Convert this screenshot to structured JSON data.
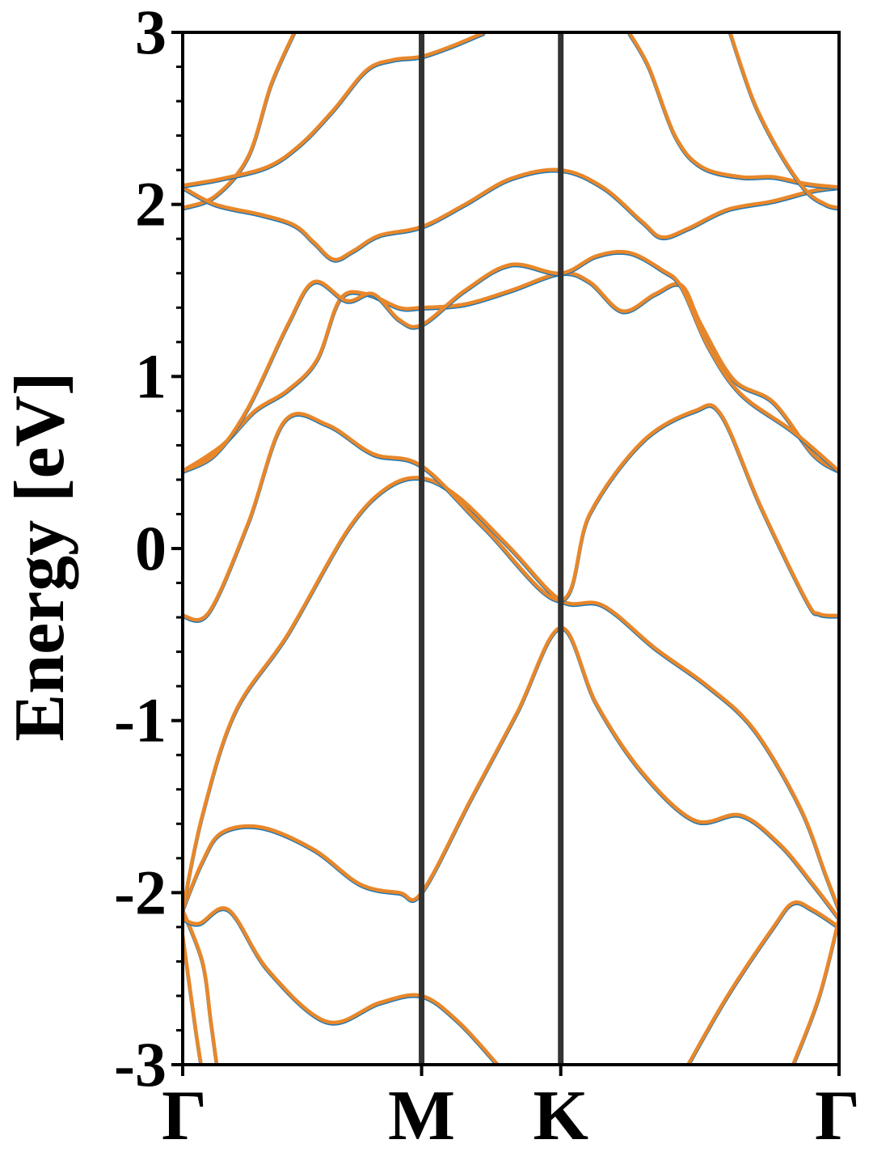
{
  "chart_data": {
    "type": "line",
    "title": "",
    "ylabel": "Energy [eV]",
    "xlabel": "",
    "ylim": [
      -3,
      3
    ],
    "yticks": [
      "3",
      "2",
      "1",
      "0",
      "-1",
      "-2",
      "-3"
    ],
    "kpath": [
      {
        "label": "Γ",
        "x": 0.0
      },
      {
        "label": "M",
        "x": 0.364
      },
      {
        "label": "K",
        "x": 0.576
      },
      {
        "label": "Γ",
        "x": 1.0
      }
    ],
    "grid": false,
    "legend": "none",
    "series_colors": {
      "primary": "#1f77b4",
      "secondary": "#e8872a"
    },
    "vline_color": "#333333",
    "bands": [
      {
        "name": "",
        "points": [
          [
            0.0,
            -2.25
          ],
          [
            0.02,
            -2.8
          ],
          [
            0.028,
            -3.0
          ]
        ]
      },
      {
        "name": "",
        "points": [
          [
            0.0,
            -2.1
          ],
          [
            0.03,
            -2.4
          ],
          [
            0.043,
            -2.75
          ],
          [
            0.052,
            -3.0
          ]
        ]
      },
      {
        "name": "",
        "points": [
          [
            0.0,
            -2.15
          ],
          [
            0.025,
            -2.18
          ],
          [
            0.07,
            -2.1
          ],
          [
            0.13,
            -2.45
          ],
          [
            0.22,
            -2.75
          ],
          [
            0.3,
            -2.64
          ],
          [
            0.364,
            -2.6
          ],
          [
            0.42,
            -2.75
          ],
          [
            0.48,
            -3.0
          ]
        ]
      },
      {
        "name": "",
        "points": [
          [
            0.0,
            -2.1
          ],
          [
            0.03,
            -1.82
          ],
          [
            0.06,
            -1.65
          ],
          [
            0.12,
            -1.62
          ],
          [
            0.2,
            -1.75
          ],
          [
            0.27,
            -1.95
          ],
          [
            0.33,
            -2.0
          ],
          [
            0.364,
            -2.0
          ],
          [
            0.44,
            -1.45
          ],
          [
            0.51,
            -0.95
          ],
          [
            0.576,
            -0.46
          ],
          [
            0.63,
            -0.9
          ],
          [
            0.7,
            -1.3
          ],
          [
            0.78,
            -1.58
          ],
          [
            0.85,
            -1.55
          ],
          [
            0.91,
            -1.72
          ],
          [
            0.96,
            -1.95
          ],
          [
            1.0,
            -2.15
          ]
        ]
      },
      {
        "name": "",
        "points": [
          [
            0.0,
            -2.1
          ],
          [
            0.03,
            -1.55
          ],
          [
            0.08,
            -0.95
          ],
          [
            0.16,
            -0.5
          ],
          [
            0.25,
            0.1
          ],
          [
            0.31,
            0.35
          ],
          [
            0.364,
            0.41
          ],
          [
            0.42,
            0.3
          ],
          [
            0.5,
            0.0
          ],
          [
            0.576,
            -0.3
          ],
          [
            0.64,
            -0.33
          ],
          [
            0.72,
            -0.58
          ],
          [
            0.8,
            -0.8
          ],
          [
            0.87,
            -1.05
          ],
          [
            0.94,
            -1.5
          ],
          [
            0.98,
            -1.9
          ],
          [
            1.0,
            -2.1
          ]
        ]
      },
      {
        "name": "",
        "points": [
          [
            0.0,
            -0.39
          ],
          [
            0.04,
            -0.37
          ],
          [
            0.1,
            0.15
          ],
          [
            0.155,
            0.74
          ],
          [
            0.22,
            0.72
          ],
          [
            0.29,
            0.55
          ],
          [
            0.364,
            0.48
          ],
          [
            0.46,
            0.12
          ],
          [
            0.576,
            -0.3
          ],
          [
            0.62,
            0.2
          ],
          [
            0.7,
            0.62
          ],
          [
            0.78,
            0.8
          ],
          [
            0.82,
            0.78
          ],
          [
            0.88,
            0.25
          ],
          [
            0.95,
            -0.3
          ],
          [
            0.97,
            -0.38
          ],
          [
            1.0,
            -0.39
          ]
        ]
      },
      {
        "name": "",
        "points": [
          [
            0.0,
            0.45
          ],
          [
            0.06,
            0.6
          ],
          [
            0.11,
            0.8
          ],
          [
            0.16,
            0.92
          ],
          [
            0.205,
            1.1
          ],
          [
            0.24,
            1.45
          ],
          [
            0.28,
            1.48
          ],
          [
            0.33,
            1.4
          ],
          [
            0.364,
            1.4
          ],
          [
            0.43,
            1.42
          ],
          [
            0.5,
            1.5
          ],
          [
            0.576,
            1.6
          ],
          [
            0.62,
            1.55
          ],
          [
            0.67,
            1.38
          ],
          [
            0.72,
            1.48
          ],
          [
            0.76,
            1.53
          ],
          [
            0.79,
            1.3
          ],
          [
            0.84,
            0.98
          ],
          [
            0.9,
            0.85
          ],
          [
            0.96,
            0.55
          ],
          [
            1.0,
            0.45
          ]
        ]
      },
      {
        "name": "",
        "points": [
          [
            0.0,
            0.45
          ],
          [
            0.05,
            0.55
          ],
          [
            0.1,
            0.82
          ],
          [
            0.16,
            1.3
          ],
          [
            0.2,
            1.55
          ],
          [
            0.25,
            1.44
          ],
          [
            0.29,
            1.48
          ],
          [
            0.33,
            1.33
          ],
          [
            0.364,
            1.3
          ],
          [
            0.43,
            1.5
          ],
          [
            0.5,
            1.65
          ],
          [
            0.576,
            1.6
          ],
          [
            0.63,
            1.7
          ],
          [
            0.68,
            1.72
          ],
          [
            0.73,
            1.62
          ],
          [
            0.76,
            1.52
          ],
          [
            0.8,
            1.18
          ],
          [
            0.85,
            0.9
          ],
          [
            0.93,
            0.68
          ],
          [
            1.0,
            0.45
          ]
        ]
      },
      {
        "name": "",
        "points": [
          [
            0.0,
            1.98
          ],
          [
            0.05,
            2.05
          ],
          [
            0.1,
            2.28
          ],
          [
            0.135,
            2.7
          ],
          [
            0.17,
            3.0
          ]
        ]
      },
      {
        "name": "",
        "points": [
          [
            0.0,
            2.1
          ],
          [
            0.05,
            2.0
          ],
          [
            0.12,
            1.94
          ],
          [
            0.17,
            1.88
          ],
          [
            0.2,
            1.78
          ],
          [
            0.23,
            1.68
          ],
          [
            0.26,
            1.73
          ],
          [
            0.3,
            1.82
          ],
          [
            0.364,
            1.87
          ],
          [
            0.43,
            2.0
          ],
          [
            0.5,
            2.15
          ],
          [
            0.576,
            2.2
          ],
          [
            0.64,
            2.1
          ],
          [
            0.7,
            1.9
          ],
          [
            0.73,
            1.81
          ],
          [
            0.77,
            1.86
          ],
          [
            0.83,
            1.97
          ],
          [
            0.9,
            2.02
          ],
          [
            0.96,
            2.08
          ],
          [
            1.0,
            2.1
          ]
        ]
      },
      {
        "name": "",
        "points": [
          [
            0.0,
            2.11
          ],
          [
            0.06,
            2.15
          ],
          [
            0.13,
            2.22
          ],
          [
            0.18,
            2.35
          ],
          [
            0.23,
            2.55
          ],
          [
            0.28,
            2.78
          ],
          [
            0.32,
            2.84
          ],
          [
            0.364,
            2.86
          ],
          [
            0.41,
            2.92
          ],
          [
            0.46,
            3.0
          ]
        ]
      },
      {
        "name": "",
        "points": [
          [
            0.68,
            3.0
          ],
          [
            0.71,
            2.8
          ],
          [
            0.75,
            2.4
          ],
          [
            0.79,
            2.22
          ],
          [
            0.85,
            2.16
          ],
          [
            0.9,
            2.16
          ],
          [
            0.95,
            2.12
          ],
          [
            1.0,
            2.1
          ]
        ]
      },
      {
        "name": "",
        "points": [
          [
            0.834,
            3.0
          ],
          [
            0.87,
            2.6
          ],
          [
            0.91,
            2.3
          ],
          [
            0.95,
            2.08
          ],
          [
            0.98,
            2.0
          ],
          [
            1.0,
            1.98
          ]
        ]
      },
      {
        "name": "",
        "points": [
          [
            0.77,
            -3.0
          ],
          [
            0.83,
            -2.6
          ],
          [
            0.9,
            -2.2
          ],
          [
            0.93,
            -2.06
          ],
          [
            0.96,
            -2.1
          ],
          [
            1.0,
            -2.2
          ]
        ]
      },
      {
        "name": "",
        "points": [
          [
            0.93,
            -3.0
          ],
          [
            0.97,
            -2.6
          ],
          [
            1.0,
            -2.15
          ]
        ]
      }
    ]
  }
}
